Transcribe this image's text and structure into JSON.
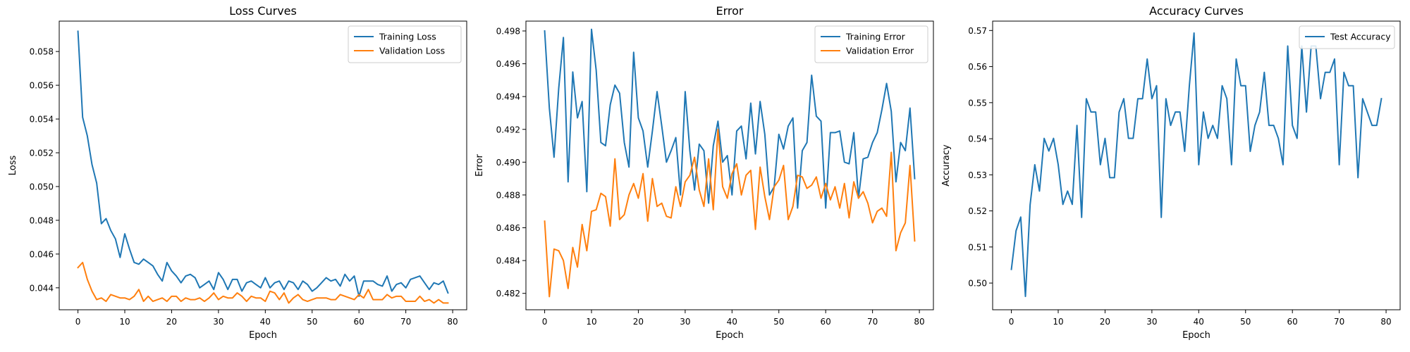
{
  "chart_data": [
    {
      "type": "line",
      "title": "Loss Curves",
      "xlabel": "Epoch",
      "ylabel": "Loss",
      "xlim": [
        -4,
        83
      ],
      "ylim": [
        0.0427,
        0.0598
      ],
      "xticks": [
        "0",
        "10",
        "20",
        "30",
        "40",
        "50",
        "60",
        "70",
        "80"
      ],
      "yticks": [
        "0.044",
        "0.046",
        "0.048",
        "0.050",
        "0.052",
        "0.054",
        "0.056",
        "0.058"
      ],
      "grid": false,
      "legend_position": "top-right",
      "series": [
        {
          "name": "Training Loss",
          "color": "#1f77b4",
          "values": [
            0.0592,
            0.0541,
            0.053,
            0.0513,
            0.0502,
            0.0478,
            0.0481,
            0.0474,
            0.0469,
            0.0458,
            0.0472,
            0.0463,
            0.0455,
            0.0454,
            0.0457,
            0.0455,
            0.0453,
            0.0448,
            0.0444,
            0.0455,
            0.045,
            0.0447,
            0.0443,
            0.0447,
            0.0448,
            0.0446,
            0.044,
            0.0442,
            0.0444,
            0.0439,
            0.0449,
            0.0445,
            0.0439,
            0.0445,
            0.0445,
            0.0438,
            0.0443,
            0.0444,
            0.0442,
            0.044,
            0.0446,
            0.044,
            0.0443,
            0.0444,
            0.0439,
            0.0444,
            0.0443,
            0.0439,
            0.0444,
            0.0442,
            0.0438,
            0.044,
            0.0443,
            0.0446,
            0.0444,
            0.0445,
            0.0441,
            0.0448,
            0.0444,
            0.0447,
            0.0435,
            0.0444,
            0.0444,
            0.0444,
            0.0442,
            0.0441,
            0.0447,
            0.0438,
            0.0442,
            0.0443,
            0.044,
            0.0445,
            0.0446,
            0.0447,
            0.0443,
            0.0439,
            0.0443,
            0.0442,
            0.0444,
            0.0437
          ]
        },
        {
          "name": "Validation Loss",
          "color": "#ff7f0e",
          "values": [
            0.0452,
            0.0455,
            0.0445,
            0.0438,
            0.0433,
            0.0434,
            0.0432,
            0.0436,
            0.0435,
            0.0434,
            0.0434,
            0.0433,
            0.0435,
            0.0439,
            0.0432,
            0.0435,
            0.0432,
            0.0433,
            0.0434,
            0.0432,
            0.0435,
            0.0435,
            0.0432,
            0.0434,
            0.0433,
            0.0433,
            0.0434,
            0.0432,
            0.0434,
            0.0437,
            0.0433,
            0.0435,
            0.0434,
            0.0434,
            0.0437,
            0.0435,
            0.0432,
            0.0435,
            0.0434,
            0.0434,
            0.0432,
            0.0438,
            0.0437,
            0.0433,
            0.0437,
            0.0431,
            0.0434,
            0.0436,
            0.0433,
            0.0432,
            0.0433,
            0.0434,
            0.0434,
            0.0434,
            0.0433,
            0.0433,
            0.0436,
            0.0435,
            0.0434,
            0.0433,
            0.0436,
            0.0434,
            0.0439,
            0.0433,
            0.0433,
            0.0433,
            0.0436,
            0.0434,
            0.0435,
            0.0435,
            0.0432,
            0.0432,
            0.0432,
            0.0435,
            0.0432,
            0.0433,
            0.0431,
            0.0433,
            0.0431,
            0.0431
          ]
        }
      ]
    },
    {
      "type": "line",
      "title": "Error",
      "xlabel": "Epoch",
      "ylabel": "Error",
      "xlim": [
        -4,
        83
      ],
      "ylim": [
        0.481,
        0.4986
      ],
      "xticks": [
        "0",
        "10",
        "20",
        "30",
        "40",
        "50",
        "60",
        "70",
        "80"
      ],
      "yticks": [
        "0.482",
        "0.484",
        "0.486",
        "0.488",
        "0.490",
        "0.492",
        "0.494",
        "0.496",
        "0.498"
      ],
      "grid": false,
      "legend_position": "top-right",
      "series": [
        {
          "name": "Training Error",
          "color": "#1f77b4",
          "values": [
            0.498,
            0.4933,
            0.4903,
            0.4945,
            0.4976,
            0.4888,
            0.4955,
            0.4927,
            0.4937,
            0.4882,
            0.4981,
            0.4956,
            0.4912,
            0.491,
            0.4935,
            0.4947,
            0.4942,
            0.4912,
            0.4897,
            0.4967,
            0.4927,
            0.4919,
            0.4897,
            0.4919,
            0.4943,
            0.4922,
            0.49,
            0.4907,
            0.4915,
            0.488,
            0.4943,
            0.4907,
            0.4883,
            0.4911,
            0.4907,
            0.4875,
            0.491,
            0.4925,
            0.49,
            0.4904,
            0.488,
            0.4919,
            0.4922,
            0.4902,
            0.4936,
            0.4905,
            0.4937,
            0.4917,
            0.488,
            0.4885,
            0.4917,
            0.4908,
            0.4922,
            0.4927,
            0.4872,
            0.4907,
            0.4912,
            0.4953,
            0.4928,
            0.4925,
            0.4872,
            0.4918,
            0.4918,
            0.4919,
            0.49,
            0.4899,
            0.4918,
            0.4878,
            0.4902,
            0.4903,
            0.4912,
            0.4918,
            0.4932,
            0.4948,
            0.4931,
            0.4888,
            0.4912,
            0.4907,
            0.4933,
            0.489
          ]
        },
        {
          "name": "Validation Error",
          "color": "#ff7f0e",
          "values": [
            0.4864,
            0.4818,
            0.4847,
            0.4846,
            0.484,
            0.4823,
            0.4848,
            0.4836,
            0.4862,
            0.4846,
            0.487,
            0.4871,
            0.4881,
            0.4879,
            0.4861,
            0.4902,
            0.4865,
            0.4868,
            0.488,
            0.4887,
            0.4878,
            0.4893,
            0.4864,
            0.489,
            0.4873,
            0.4875,
            0.4867,
            0.4866,
            0.4885,
            0.4873,
            0.4888,
            0.4892,
            0.4903,
            0.4883,
            0.4873,
            0.4902,
            0.4871,
            0.492,
            0.4885,
            0.4878,
            0.4893,
            0.4899,
            0.488,
            0.4892,
            0.4895,
            0.4859,
            0.4897,
            0.4879,
            0.4865,
            0.4885,
            0.4889,
            0.4898,
            0.4865,
            0.4873,
            0.4892,
            0.4891,
            0.4884,
            0.4886,
            0.4891,
            0.4878,
            0.4887,
            0.4877,
            0.4885,
            0.4872,
            0.4887,
            0.4866,
            0.4888,
            0.4878,
            0.4882,
            0.4875,
            0.4863,
            0.487,
            0.4872,
            0.4867,
            0.4906,
            0.4846,
            0.4857,
            0.4863,
            0.4898,
            0.4852
          ]
        }
      ]
    },
    {
      "type": "line",
      "title": "Accuracy Curves",
      "xlabel": "Epoch",
      "ylabel": "Accuracy",
      "xlim": [
        -4,
        83
      ],
      "ylim": [
        0.4926,
        0.5726
      ],
      "xticks": [
        "0",
        "10",
        "20",
        "30",
        "40",
        "50",
        "60",
        "70",
        "80"
      ],
      "yticks": [
        "0.50",
        "0.51",
        "0.52",
        "0.53",
        "0.54",
        "0.55",
        "0.56",
        "0.57"
      ],
      "grid": false,
      "legend_position": "top-right",
      "series": [
        {
          "name": "Test Accuracy",
          "color": "#1f77b4",
          "values": [
            0.5038,
            0.5145,
            0.5183,
            0.4963,
            0.5217,
            0.5328,
            0.5255,
            0.5401,
            0.5366,
            0.5401,
            0.5328,
            0.5218,
            0.5255,
            0.5218,
            0.5437,
            0.5182,
            0.5511,
            0.5474,
            0.5474,
            0.5328,
            0.5401,
            0.5292,
            0.5292,
            0.5474,
            0.5511,
            0.5401,
            0.5401,
            0.5511,
            0.5511,
            0.5621,
            0.5511,
            0.5547,
            0.5182,
            0.5511,
            0.5437,
            0.5474,
            0.5474,
            0.5365,
            0.5547,
            0.5693,
            0.5328,
            0.5474,
            0.5401,
            0.5437,
            0.5401,
            0.5547,
            0.5511,
            0.5328,
            0.5621,
            0.5547,
            0.5547,
            0.5365,
            0.5437,
            0.5474,
            0.5584,
            0.5437,
            0.5437,
            0.5401,
            0.5328,
            0.5657,
            0.5437,
            0.5401,
            0.5657,
            0.5474,
            0.5657,
            0.5657,
            0.5511,
            0.5584,
            0.5584,
            0.5621,
            0.5328,
            0.5584,
            0.5547,
            0.5547,
            0.5292,
            0.5511,
            0.5474,
            0.5437,
            0.5437,
            0.5511
          ]
        }
      ]
    }
  ]
}
